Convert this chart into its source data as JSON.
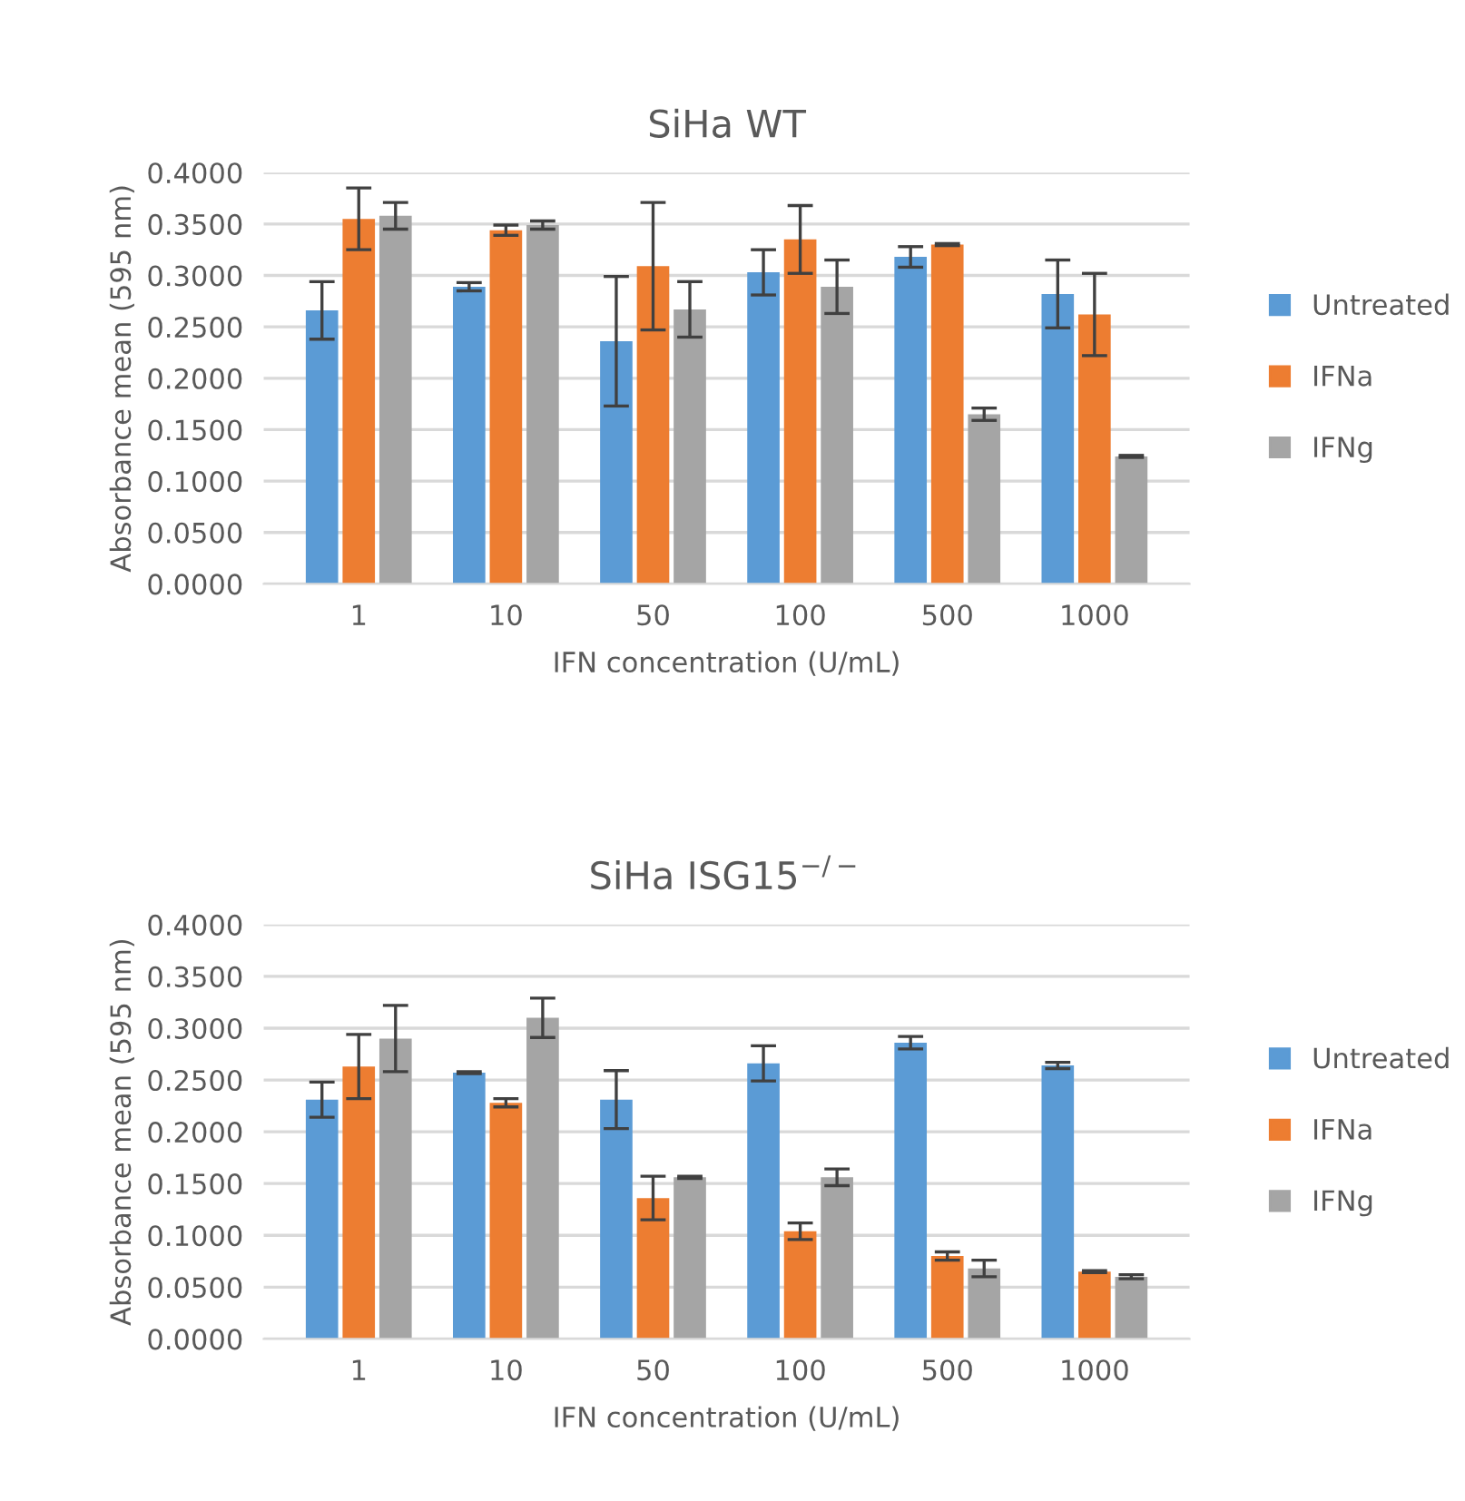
{
  "chart_data": [
    {
      "type": "bar",
      "title": "SiHa WT",
      "xlabel": "IFN concentration (U/mL)",
      "ylabel": "Absorbance mean (595 nm)",
      "categories": [
        "1",
        "10",
        "50",
        "100",
        "500",
        "1000"
      ],
      "series": [
        {
          "name": "Untreated",
          "color": "#5b9bd5",
          "values": [
            0.266,
            0.289,
            0.236,
            0.303,
            0.318,
            0.282
          ],
          "errors": [
            0.028,
            0.004,
            0.063,
            0.022,
            0.01,
            0.033
          ]
        },
        {
          "name": "IFNa",
          "color": "#ed7d31",
          "values": [
            0.355,
            0.344,
            0.309,
            0.335,
            0.33,
            0.262
          ],
          "errors": [
            0.03,
            0.005,
            0.062,
            0.033,
            0.001,
            0.04
          ]
        },
        {
          "name": "IFNg",
          "color": "#a5a5a5",
          "values": [
            0.358,
            0.349,
            0.267,
            0.289,
            0.165,
            0.124
          ],
          "errors": [
            0.013,
            0.004,
            0.027,
            0.026,
            0.006,
            0.001
          ]
        }
      ],
      "ylim": [
        0,
        0.4
      ],
      "yticks": [
        {
          "value": 0,
          "label": "0.0000"
        },
        {
          "value": 0.05,
          "label": "0.0500"
        },
        {
          "value": 0.1,
          "label": "0.1000"
        },
        {
          "value": 0.15,
          "label": "0.1500"
        },
        {
          "value": 0.2,
          "label": "0.2000"
        },
        {
          "value": 0.25,
          "label": "0.2500"
        },
        {
          "value": 0.3,
          "label": "0.3000"
        },
        {
          "value": 0.35,
          "label": "0.3500"
        },
        {
          "value": 0.4,
          "label": "0.4000"
        }
      ],
      "grid": "y",
      "legend": "right"
    },
    {
      "type": "bar",
      "title": "SiHa ISG15$^{−/−}$",
      "xlabel": "IFN concentration (U/mL)",
      "ylabel": "Absorbance mean (595 nm)",
      "categories": [
        "1",
        "10",
        "50",
        "100",
        "500",
        "1000"
      ],
      "series": [
        {
          "name": "Untreated",
          "color": "#5b9bd5",
          "values": [
            0.231,
            0.257,
            0.231,
            0.266,
            0.286,
            0.264
          ],
          "errors": [
            0.017,
            0.001,
            0.028,
            0.017,
            0.006,
            0.003
          ]
        },
        {
          "name": "IFNa",
          "color": "#ed7d31",
          "values": [
            0.263,
            0.228,
            0.136,
            0.104,
            0.08,
            0.065
          ],
          "errors": [
            0.031,
            0.004,
            0.021,
            0.008,
            0.004,
            0.001
          ]
        },
        {
          "name": "IFNg",
          "color": "#a5a5a5",
          "values": [
            0.29,
            0.31,
            0.156,
            0.156,
            0.068,
            0.06
          ],
          "errors": [
            0.032,
            0.019,
            0.001,
            0.008,
            0.008,
            0.002
          ]
        }
      ],
      "ylim": [
        0,
        0.4
      ],
      "yticks": [
        {
          "value": 0,
          "label": "0.0000"
        },
        {
          "value": 0.05,
          "label": "0.0500"
        },
        {
          "value": 0.1,
          "label": "0.1000"
        },
        {
          "value": 0.15,
          "label": "0.1500"
        },
        {
          "value": 0.2,
          "label": "0.2000"
        },
        {
          "value": 0.25,
          "label": "0.2500"
        },
        {
          "value": 0.3,
          "label": "0.3000"
        },
        {
          "value": 0.35,
          "label": "0.3500"
        },
        {
          "value": 0.4,
          "label": "0.4000"
        }
      ],
      "grid": "y",
      "legend": "right"
    }
  ]
}
